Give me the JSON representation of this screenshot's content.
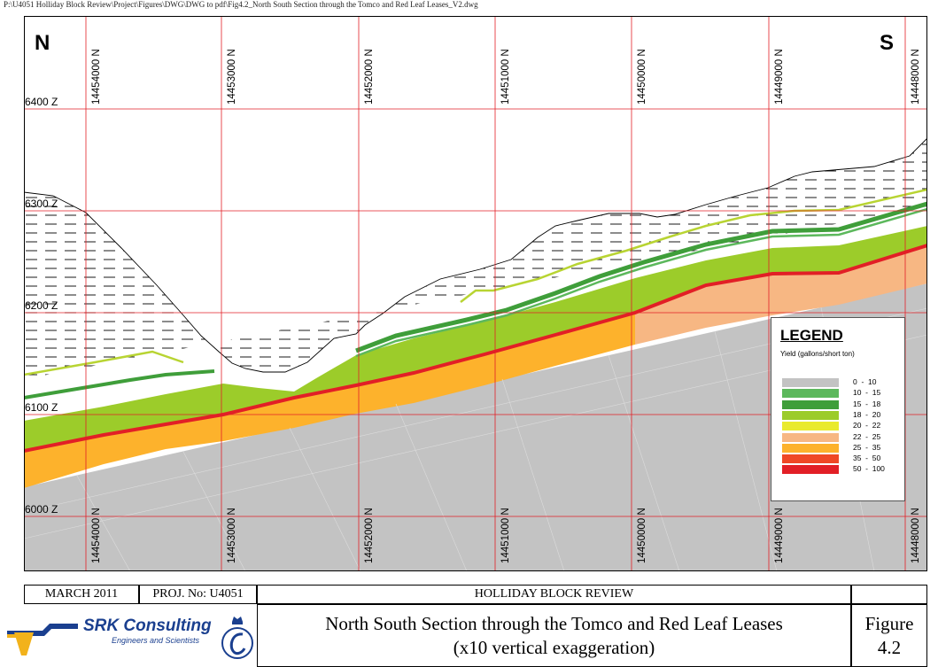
{
  "header": {
    "file_path": "P:\\U4051 Holliday Block Review\\Project\\Figures\\DWG\\DWG to pdf\\Fig4.2_North South Section through the Tomco and Red Leaf Leases_V2.dwg"
  },
  "section": {
    "north_label": "N",
    "south_label": "S",
    "elevations": [
      "6400  Z",
      "6300  Z",
      "6200  Z",
      "6100  Z",
      "6000  Z"
    ],
    "northings": [
      "14454000  N",
      "14453000  N",
      "14452000  N",
      "14451000  N",
      "14450000  N",
      "14449000  N",
      "14448000  N"
    ]
  },
  "legend": {
    "title": "LEGEND",
    "subtitle": "Yield (gallons/short ton)",
    "items": [
      {
        "range": "0  -  10",
        "color": "#c3c3c3"
      },
      {
        "range": "10  -  15",
        "color": "#5cb85c"
      },
      {
        "range": "15  -  18",
        "color": "#3f9e3a"
      },
      {
        "range": "18  -  20",
        "color": "#9ccc2a"
      },
      {
        "range": "20  -  22",
        "color": "#e9ea2e"
      },
      {
        "range": "22  -  25",
        "color": "#f7b783"
      },
      {
        "range": "25  -  35",
        "color": "#fdb22c"
      },
      {
        "range": "35  -  50",
        "color": "#ef4826"
      },
      {
        "range": "50  -  100",
        "color": "#e21f26"
      }
    ]
  },
  "titleblock": {
    "date": "MARCH 2011",
    "project": "PROJ. No: U4051",
    "report": "HOLLIDAY BLOCK REVIEW",
    "title_line1": "North South Section through the Tomco and Red Leaf Leases",
    "title_line2": "(x10 vertical exaggeration)",
    "figure_label": "Figure",
    "figure_number": "4.2",
    "company": "SRK Consulting",
    "company_sub": "Engineers and Scientists"
  }
}
